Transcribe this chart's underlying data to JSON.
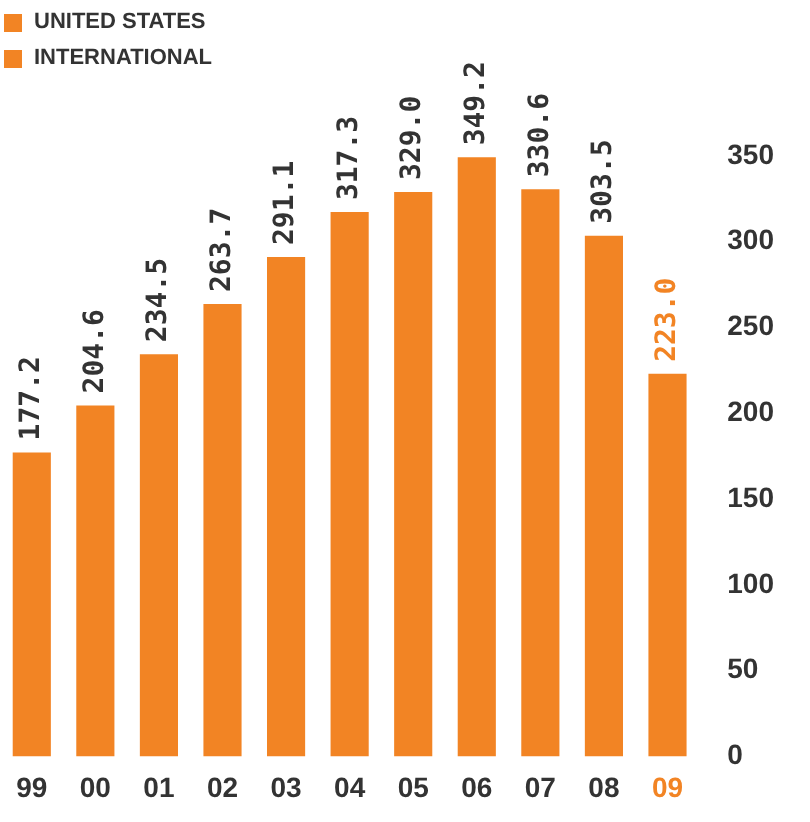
{
  "chart_data": {
    "type": "bar",
    "categories": [
      "99",
      "00",
      "01",
      "02",
      "03",
      "04",
      "05",
      "06",
      "07",
      "08",
      "09"
    ],
    "series": [
      {
        "name": "UNITED STATES",
        "color": "#f28424",
        "values": [
          177.2,
          204.6,
          234.5,
          263.7,
          291.1,
          317.3,
          329.0,
          349.2,
          330.6,
          303.5,
          223.0
        ],
        "value_labels": [
          "177.2",
          "204.6",
          "234.5",
          "263.7",
          "291.1",
          "317.3",
          "329.0",
          "349.2",
          "330.6",
          "303.5",
          "223.0"
        ]
      },
      {
        "name": "INTERNATIONAL",
        "color": "#f28424",
        "values": [
          null,
          null,
          null,
          null,
          null,
          null,
          null,
          null,
          null,
          null,
          null
        ]
      }
    ],
    "ylim": [
      0,
      350
    ],
    "yticks": [
      0,
      50,
      100,
      150,
      200,
      250,
      300,
      350
    ],
    "grid": false,
    "legend": "top left"
  }
}
